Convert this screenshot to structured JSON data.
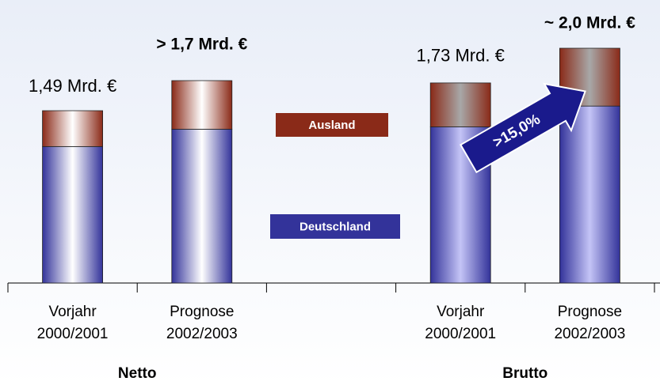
{
  "chart_data": {
    "type": "stacked_bar",
    "categories": [
      [
        "Vorjahr",
        "2000/2001"
      ],
      [
        "Prognose",
        "2002/2003"
      ],
      null,
      [
        "Vorjahr",
        "2000/2001"
      ],
      [
        "Prognose",
        "2002/2003"
      ]
    ],
    "series": [
      {
        "name": "Deutschland",
        "color": "#33339a",
        "values": [
          1.18,
          1.33,
          null,
          1.35,
          1.53
        ]
      },
      {
        "name": "Ausland",
        "color": "#8a2a18",
        "values": [
          0.31,
          0.42,
          null,
          0.38,
          0.5
        ]
      }
    ],
    "annotations": [
      "1,49 Mrd. €",
      "> 1,7 Mrd. €",
      null,
      "1,73 Mrd. €",
      "~ 2,0 Mrd. €"
    ],
    "groups": [
      "Netto",
      "Brutto"
    ],
    "arrow_label": ">15,0%"
  }
}
